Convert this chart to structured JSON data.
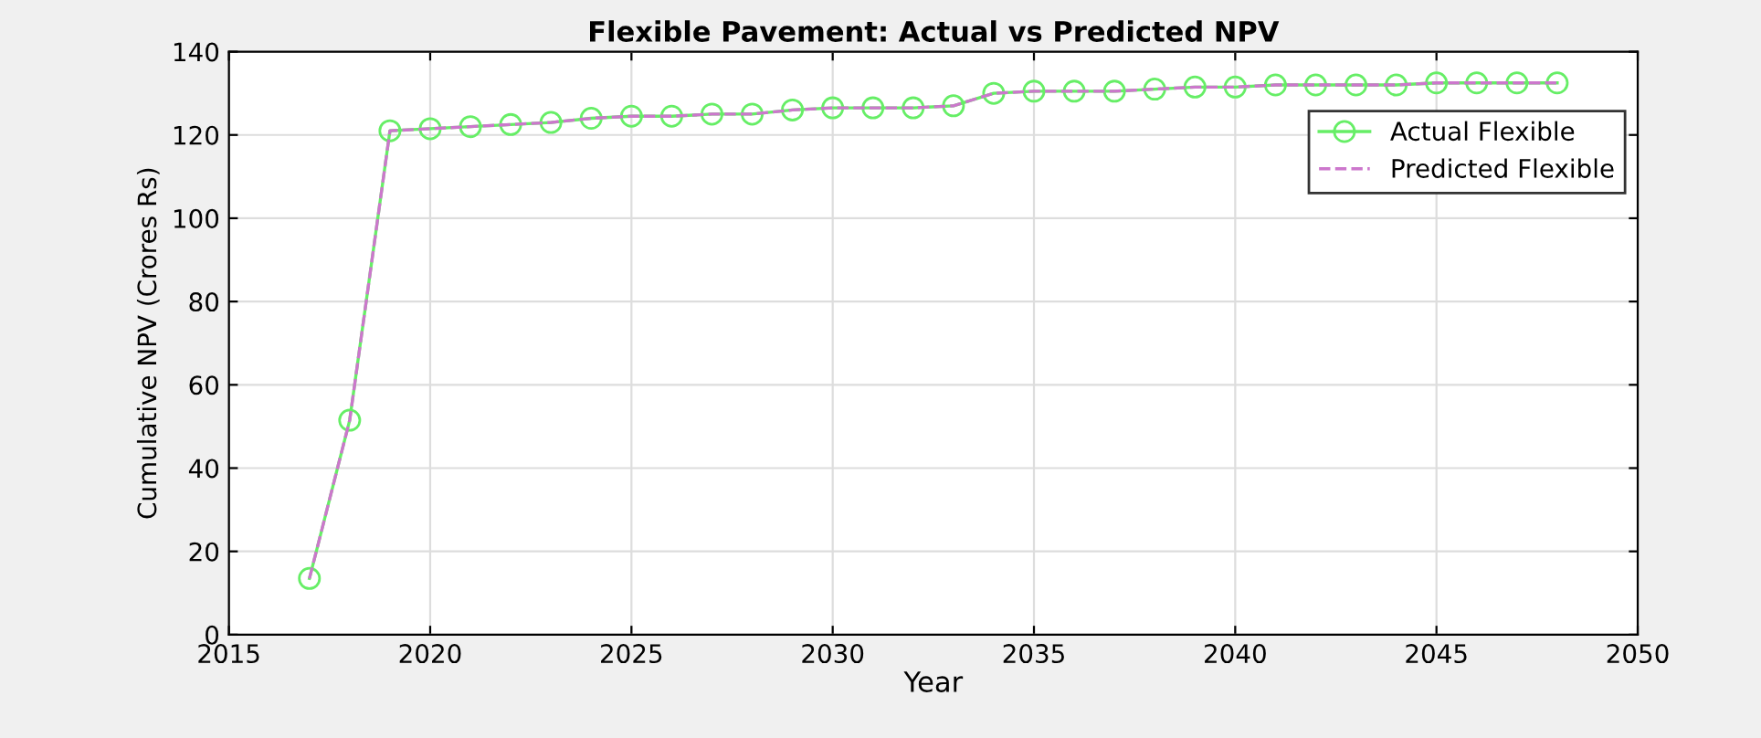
{
  "chart_data": {
    "type": "line",
    "title": "Flexible Pavement: Actual vs Predicted NPV",
    "xlabel": "Year",
    "ylabel": "Cumulative NPV (Crores Rs)",
    "x": [
      2017,
      2018,
      2019,
      2020,
      2021,
      2022,
      2023,
      2024,
      2025,
      2026,
      2027,
      2028,
      2029,
      2030,
      2031,
      2032,
      2033,
      2034,
      2035,
      2036,
      2037,
      2038,
      2039,
      2040,
      2041,
      2042,
      2043,
      2044,
      2045,
      2046,
      2047,
      2048
    ],
    "series": [
      {
        "name": "Actual Flexible",
        "color": "#66ee66",
        "marker": "circle",
        "line_style": "solid",
        "values": [
          13.5,
          51.5,
          121,
          121.5,
          122,
          122.5,
          123,
          124,
          124.5,
          124.5,
          125,
          125,
          126,
          126.5,
          126.5,
          126.5,
          127,
          130,
          130.5,
          130.5,
          130.5,
          131,
          131.5,
          131.5,
          132,
          132,
          132,
          132,
          132.5,
          132.5,
          132.5,
          132.5
        ]
      },
      {
        "name": "Predicted Flexible",
        "color": "#cc77cc",
        "marker": "none",
        "line_style": "dashed",
        "values": [
          13.5,
          51.5,
          121,
          121.5,
          122,
          122.5,
          123,
          124,
          124.5,
          124.5,
          125,
          125,
          126,
          126.5,
          126.5,
          126.5,
          127,
          130,
          130.5,
          130.5,
          130.5,
          131,
          131.5,
          131.5,
          132,
          132,
          132,
          132,
          132.5,
          132.5,
          132.5,
          132.5
        ]
      }
    ],
    "xlim": [
      2015,
      2050
    ],
    "xticks": [
      2015,
      2020,
      2025,
      2030,
      2035,
      2040,
      2045,
      2050
    ],
    "ylim": [
      0,
      140
    ],
    "yticks": [
      0,
      20,
      40,
      60,
      80,
      100,
      120,
      140
    ],
    "grid": true,
    "legend": "top right"
  }
}
